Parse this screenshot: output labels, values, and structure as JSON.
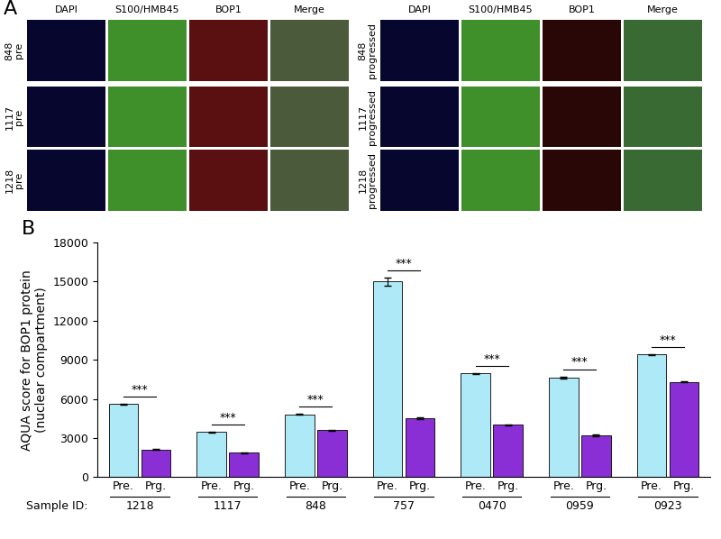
{
  "panel_a": {
    "label": "A",
    "columns": [
      "DAPI",
      "S100/HMB45",
      "BOP1",
      "Merge"
    ],
    "blocks": [
      {
        "rows": [
          {
            "id": "848",
            "state": "pre"
          },
          {
            "id": "1117",
            "state": "pre"
          },
          {
            "id": "1218",
            "state": "pre"
          }
        ]
      },
      {
        "rows": [
          {
            "id": "848",
            "state": "progressed"
          },
          {
            "id": "1117",
            "state": "progressed"
          },
          {
            "id": "1218",
            "state": "progressed"
          }
        ]
      }
    ]
  },
  "chart_data": {
    "type": "bar",
    "panel_label": "B",
    "y_label": "AQUA score for BOP1 protein\n(nuclear compartment)",
    "x_label": "Sample ID:",
    "categories": [
      "1218",
      "1117",
      "848",
      "757",
      "0470",
      "0959",
      "0923"
    ],
    "series": [
      {
        "name": "Pre.",
        "color": "#aee9f7",
        "values": [
          5600,
          3450,
          4800,
          15000,
          7950,
          7650,
          9400
        ],
        "errors": [
          40,
          40,
          40,
          300,
          40,
          80,
          40
        ]
      },
      {
        "name": "Prg.",
        "color": "#8a2fd6",
        "values": [
          2100,
          1850,
          3600,
          4500,
          4000,
          3200,
          7300
        ],
        "errors": [
          40,
          40,
          40,
          60,
          40,
          40,
          40
        ]
      }
    ],
    "annotations": [
      "***",
      "***",
      "***",
      "***",
      "***",
      "***",
      "***"
    ],
    "ylim": [
      0,
      18000
    ],
    "yticks": [
      0,
      3000,
      6000,
      9000,
      12000,
      15000,
      18000
    ],
    "grid": false
  }
}
